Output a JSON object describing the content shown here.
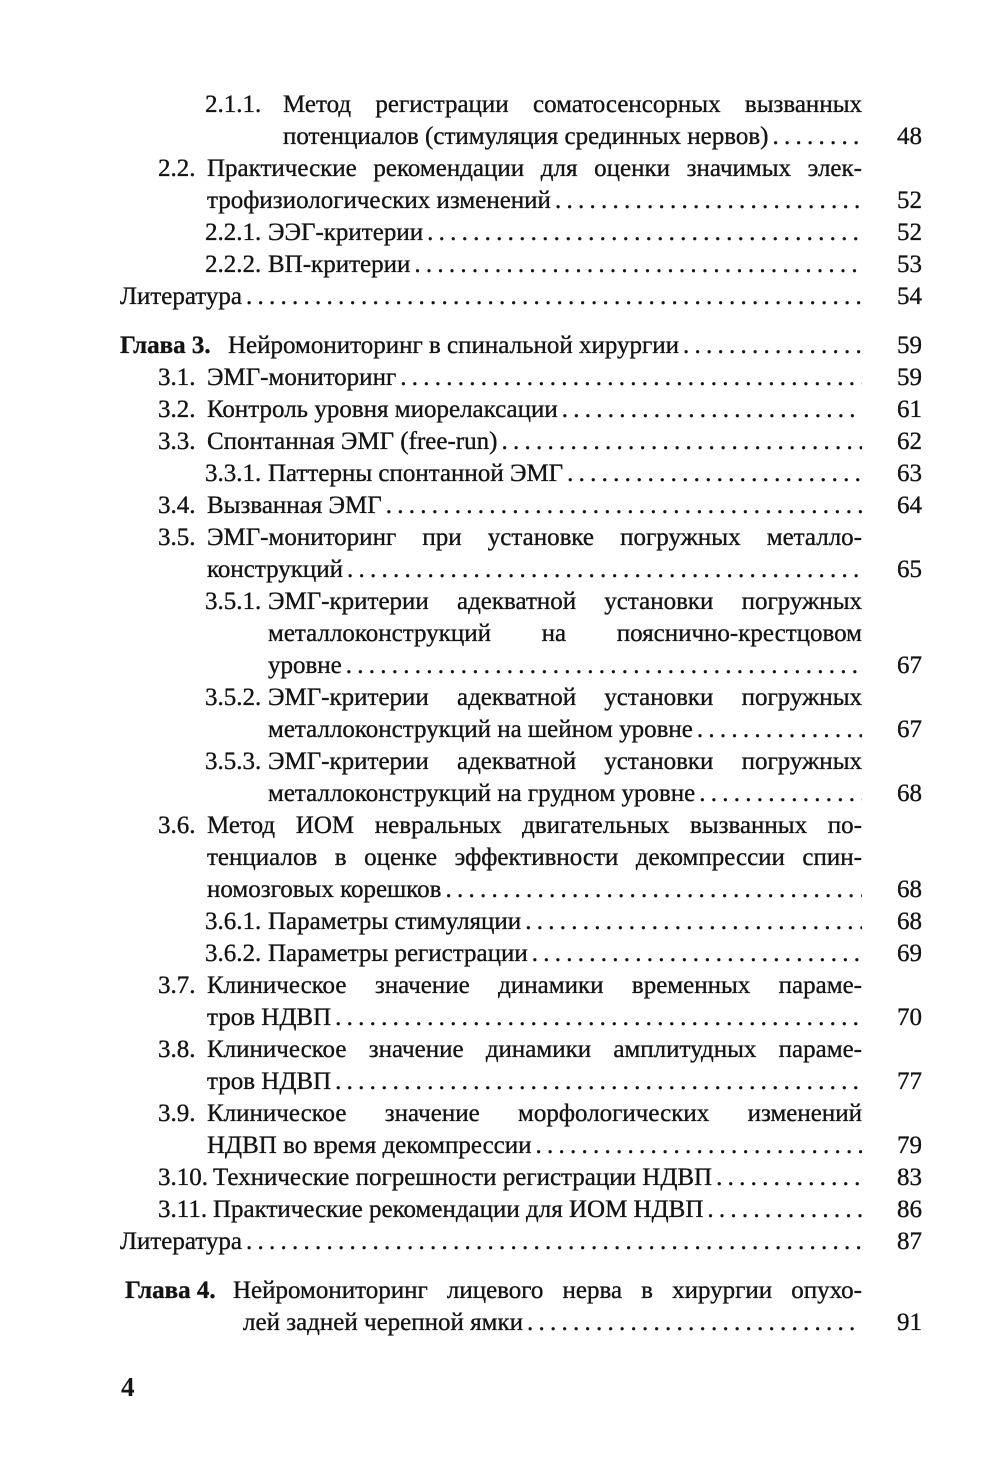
{
  "entries": [
    {
      "level": 2,
      "num": "2.1.1.",
      "lines": [
        "Метод регистрации соматосенсорных вызванных",
        "потенциалов (стимуляция срединных нервов)"
      ],
      "page": "48"
    },
    {
      "level": 1,
      "num": "2.2.",
      "lines": [
        "Практические рекомендации для оценки значимых элек-",
        "трофизиологических изменений"
      ],
      "page": "52"
    },
    {
      "level": 2,
      "num": "2.2.1.",
      "lines": [
        "ЭЭГ-критерии"
      ],
      "page": "52"
    },
    {
      "level": 2,
      "num": "2.2.2.",
      "lines": [
        "ВП-критерии"
      ],
      "page": "53"
    },
    {
      "level": 0,
      "num": "",
      "lines": [
        "Литература"
      ],
      "page": "54"
    },
    {
      "level": 0,
      "gap": true,
      "bold_num": true,
      "num": "Глава 3.",
      "lines": [
        "Нейромониторинг в спинальной хирургии"
      ],
      "page": "59"
    },
    {
      "level": 1,
      "num": "3.1.",
      "lines": [
        "ЭМГ-мониторинг"
      ],
      "page": "59"
    },
    {
      "level": 1,
      "num": "3.2.",
      "lines": [
        "Контроль уровня миорелаксации"
      ],
      "page": "61"
    },
    {
      "level": 1,
      "num": "3.3.",
      "lines": [
        "Спонтанная ЭМГ (free-run)"
      ],
      "page": "62"
    },
    {
      "level": 2,
      "num": "3.3.1.",
      "lines": [
        "Паттерны спонтанной ЭМГ"
      ],
      "page": "63"
    },
    {
      "level": 1,
      "num": "3.4.",
      "lines": [
        "Вызванная ЭМГ"
      ],
      "page": "64"
    },
    {
      "level": 1,
      "num": "3.5.",
      "lines": [
        "ЭМГ-мониторинг при установке погружных металло-",
        "конструкций"
      ],
      "page": "65"
    },
    {
      "level": 2,
      "num": "3.5.1.",
      "lines": [
        "ЭМГ-критерии адекватной установки погружных",
        "металлоконструкций на пояснично-крестцовом",
        "уровне"
      ],
      "page": "67"
    },
    {
      "level": 2,
      "num": "3.5.2.",
      "lines": [
        "ЭМГ-критерии адекватной установки погружных",
        "металлоконструкций на шейном уровне"
      ],
      "page": "67"
    },
    {
      "level": 2,
      "num": "3.5.3.",
      "lines": [
        "ЭМГ-критерии адекватной установки погружных",
        "металлоконструкций на грудном уровне"
      ],
      "page": "68"
    },
    {
      "level": 1,
      "num": "3.6.",
      "lines": [
        "Метод ИОМ невральных двигательных вызванных по-",
        "тенциалов в оценке эффективности декомпрессии спин-",
        "номозговых корешков"
      ],
      "page": "68"
    },
    {
      "level": 2,
      "num": "3.6.1.",
      "lines": [
        "Параметры стимуляции"
      ],
      "page": "68"
    },
    {
      "level": 2,
      "num": "3.6.2.",
      "lines": [
        "Параметры регистрации"
      ],
      "page": "69"
    },
    {
      "level": 1,
      "num": "3.7.",
      "lines": [
        "Клиническое значение динамики временных параме-",
        "тров НДВП"
      ],
      "page": "70"
    },
    {
      "level": 1,
      "num": "3.8.",
      "lines": [
        "Клиническое значение динамики амплитудных параме-",
        "тров НДВП"
      ],
      "page": "77"
    },
    {
      "level": 1,
      "num": "3.9.",
      "lines": [
        "Клиническое значение морфологических изменений",
        "НДВП во время декомпрессии"
      ],
      "page": "79"
    },
    {
      "level": 1,
      "num": "3.10.",
      "lines": [
        "Технические погрешности регистрации НДВП"
      ],
      "page": "83"
    },
    {
      "level": 1,
      "num": "3.11.",
      "lines": [
        "Практические рекомендации для ИОМ НДВП"
      ],
      "page": "86"
    },
    {
      "level": 0,
      "num": "",
      "lines": [
        "Литература"
      ],
      "page": "87"
    },
    {
      "level": 0,
      "gap": true,
      "bold_num": true,
      "num": "Глава 4.",
      "lines": [
        "Нейромониторинг лицевого нерва в хирургии опухо-",
        "лей задней черепной ямки"
      ],
      "page": "91"
    }
  ],
  "folio": "4"
}
